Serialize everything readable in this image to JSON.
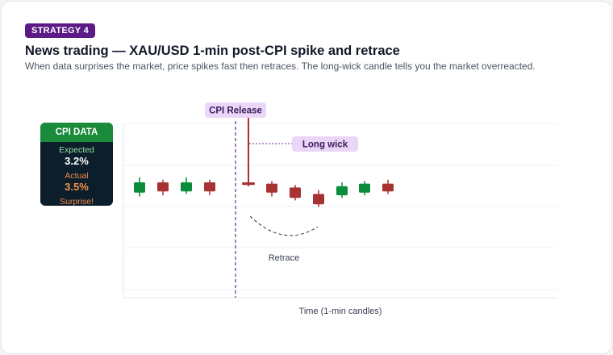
{
  "badge": "STRATEGY 4",
  "title": "News trading — XAU/USD 1-min post-CPI spike and retrace",
  "subtitle": "When data surprises the market, price spikes fast then retraces. The long-wick candle tells you the market overreacted.",
  "cpi": {
    "header": "CPI DATA",
    "expected_label": "Expected",
    "expected_value": "3.2%",
    "actual_label": "Actual",
    "actual_value": "3.5%",
    "surprise_label": "Surprise!"
  },
  "annotations": {
    "release": "CPI Release",
    "long_wick": "Long wick",
    "retrace": "Retrace"
  },
  "colors": {
    "bull": "#0a8c3c",
    "bear": "#a83232",
    "badge": "#5b1a86",
    "release_line": "#6b2a8f",
    "label_bg": "#ead7f7"
  },
  "chart_data": {
    "type": "candlestick",
    "xlabel": "Time (1-min candles)",
    "ylabel": "",
    "grid": true,
    "release_after_index": 3,
    "ylim": [
      0,
      100
    ],
    "candles": [
      {
        "open": 42,
        "close": 50,
        "high": 54,
        "low": 39
      },
      {
        "open": 50,
        "close": 43,
        "high": 52,
        "low": 40
      },
      {
        "open": 43,
        "close": 50,
        "high": 54,
        "low": 41
      },
      {
        "open": 50,
        "close": 43,
        "high": 52,
        "low": 40
      },
      {
        "open": 50,
        "close": 48,
        "high": 100,
        "low": 47
      },
      {
        "open": 49,
        "close": 42,
        "high": 51,
        "low": 39
      },
      {
        "open": 46,
        "close": 38,
        "high": 48,
        "low": 36
      },
      {
        "open": 41,
        "close": 33,
        "high": 44,
        "low": 31
      },
      {
        "open": 40,
        "close": 47,
        "high": 50,
        "low": 38
      },
      {
        "open": 42,
        "close": 49,
        "high": 51,
        "low": 40
      },
      {
        "open": 49,
        "close": 43,
        "high": 52,
        "low": 41
      }
    ]
  }
}
